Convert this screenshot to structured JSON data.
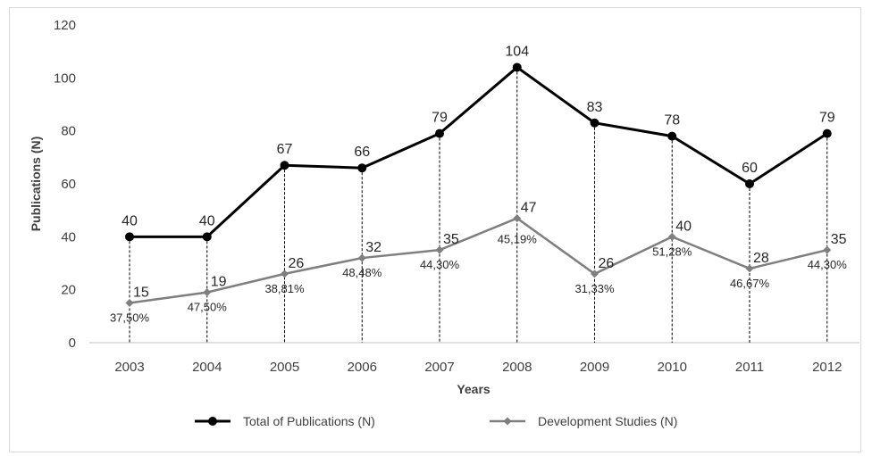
{
  "chart_data": {
    "type": "line",
    "title": "",
    "xlabel": "Years",
    "ylabel": "Publications (N)",
    "ylim": [
      0,
      120
    ],
    "yticks": [
      0,
      20,
      40,
      60,
      80,
      100,
      120
    ],
    "grid": false,
    "legend_position": "bottom",
    "categories": [
      "2003",
      "2004",
      "2005",
      "2006",
      "2007",
      "2008",
      "2009",
      "2010",
      "2011",
      "2012"
    ],
    "series": [
      {
        "name": "Total of Publications (N)",
        "color": "#000000",
        "values": [
          40,
          40,
          67,
          66,
          79,
          104,
          83,
          78,
          60,
          79
        ],
        "labels": [
          "40",
          "40",
          "67",
          "66",
          "79",
          "104",
          "83",
          "78",
          "60",
          "79"
        ]
      },
      {
        "name": "Development Studies (N)",
        "color": "#7f7f7f",
        "values": [
          15,
          19,
          26,
          32,
          35,
          47,
          26,
          40,
          28,
          35
        ],
        "labels": [
          "15",
          "19",
          "26",
          "32",
          "35",
          "47",
          "26",
          "40",
          "28",
          "35"
        ],
        "percent_labels": [
          "37,50%",
          "47,50%",
          "38,81%",
          "48,48%",
          "44,30%",
          "45,19%",
          "31,33%",
          "51,28%",
          "46,67%",
          "44,30%"
        ]
      }
    ],
    "drop_lines": true
  }
}
